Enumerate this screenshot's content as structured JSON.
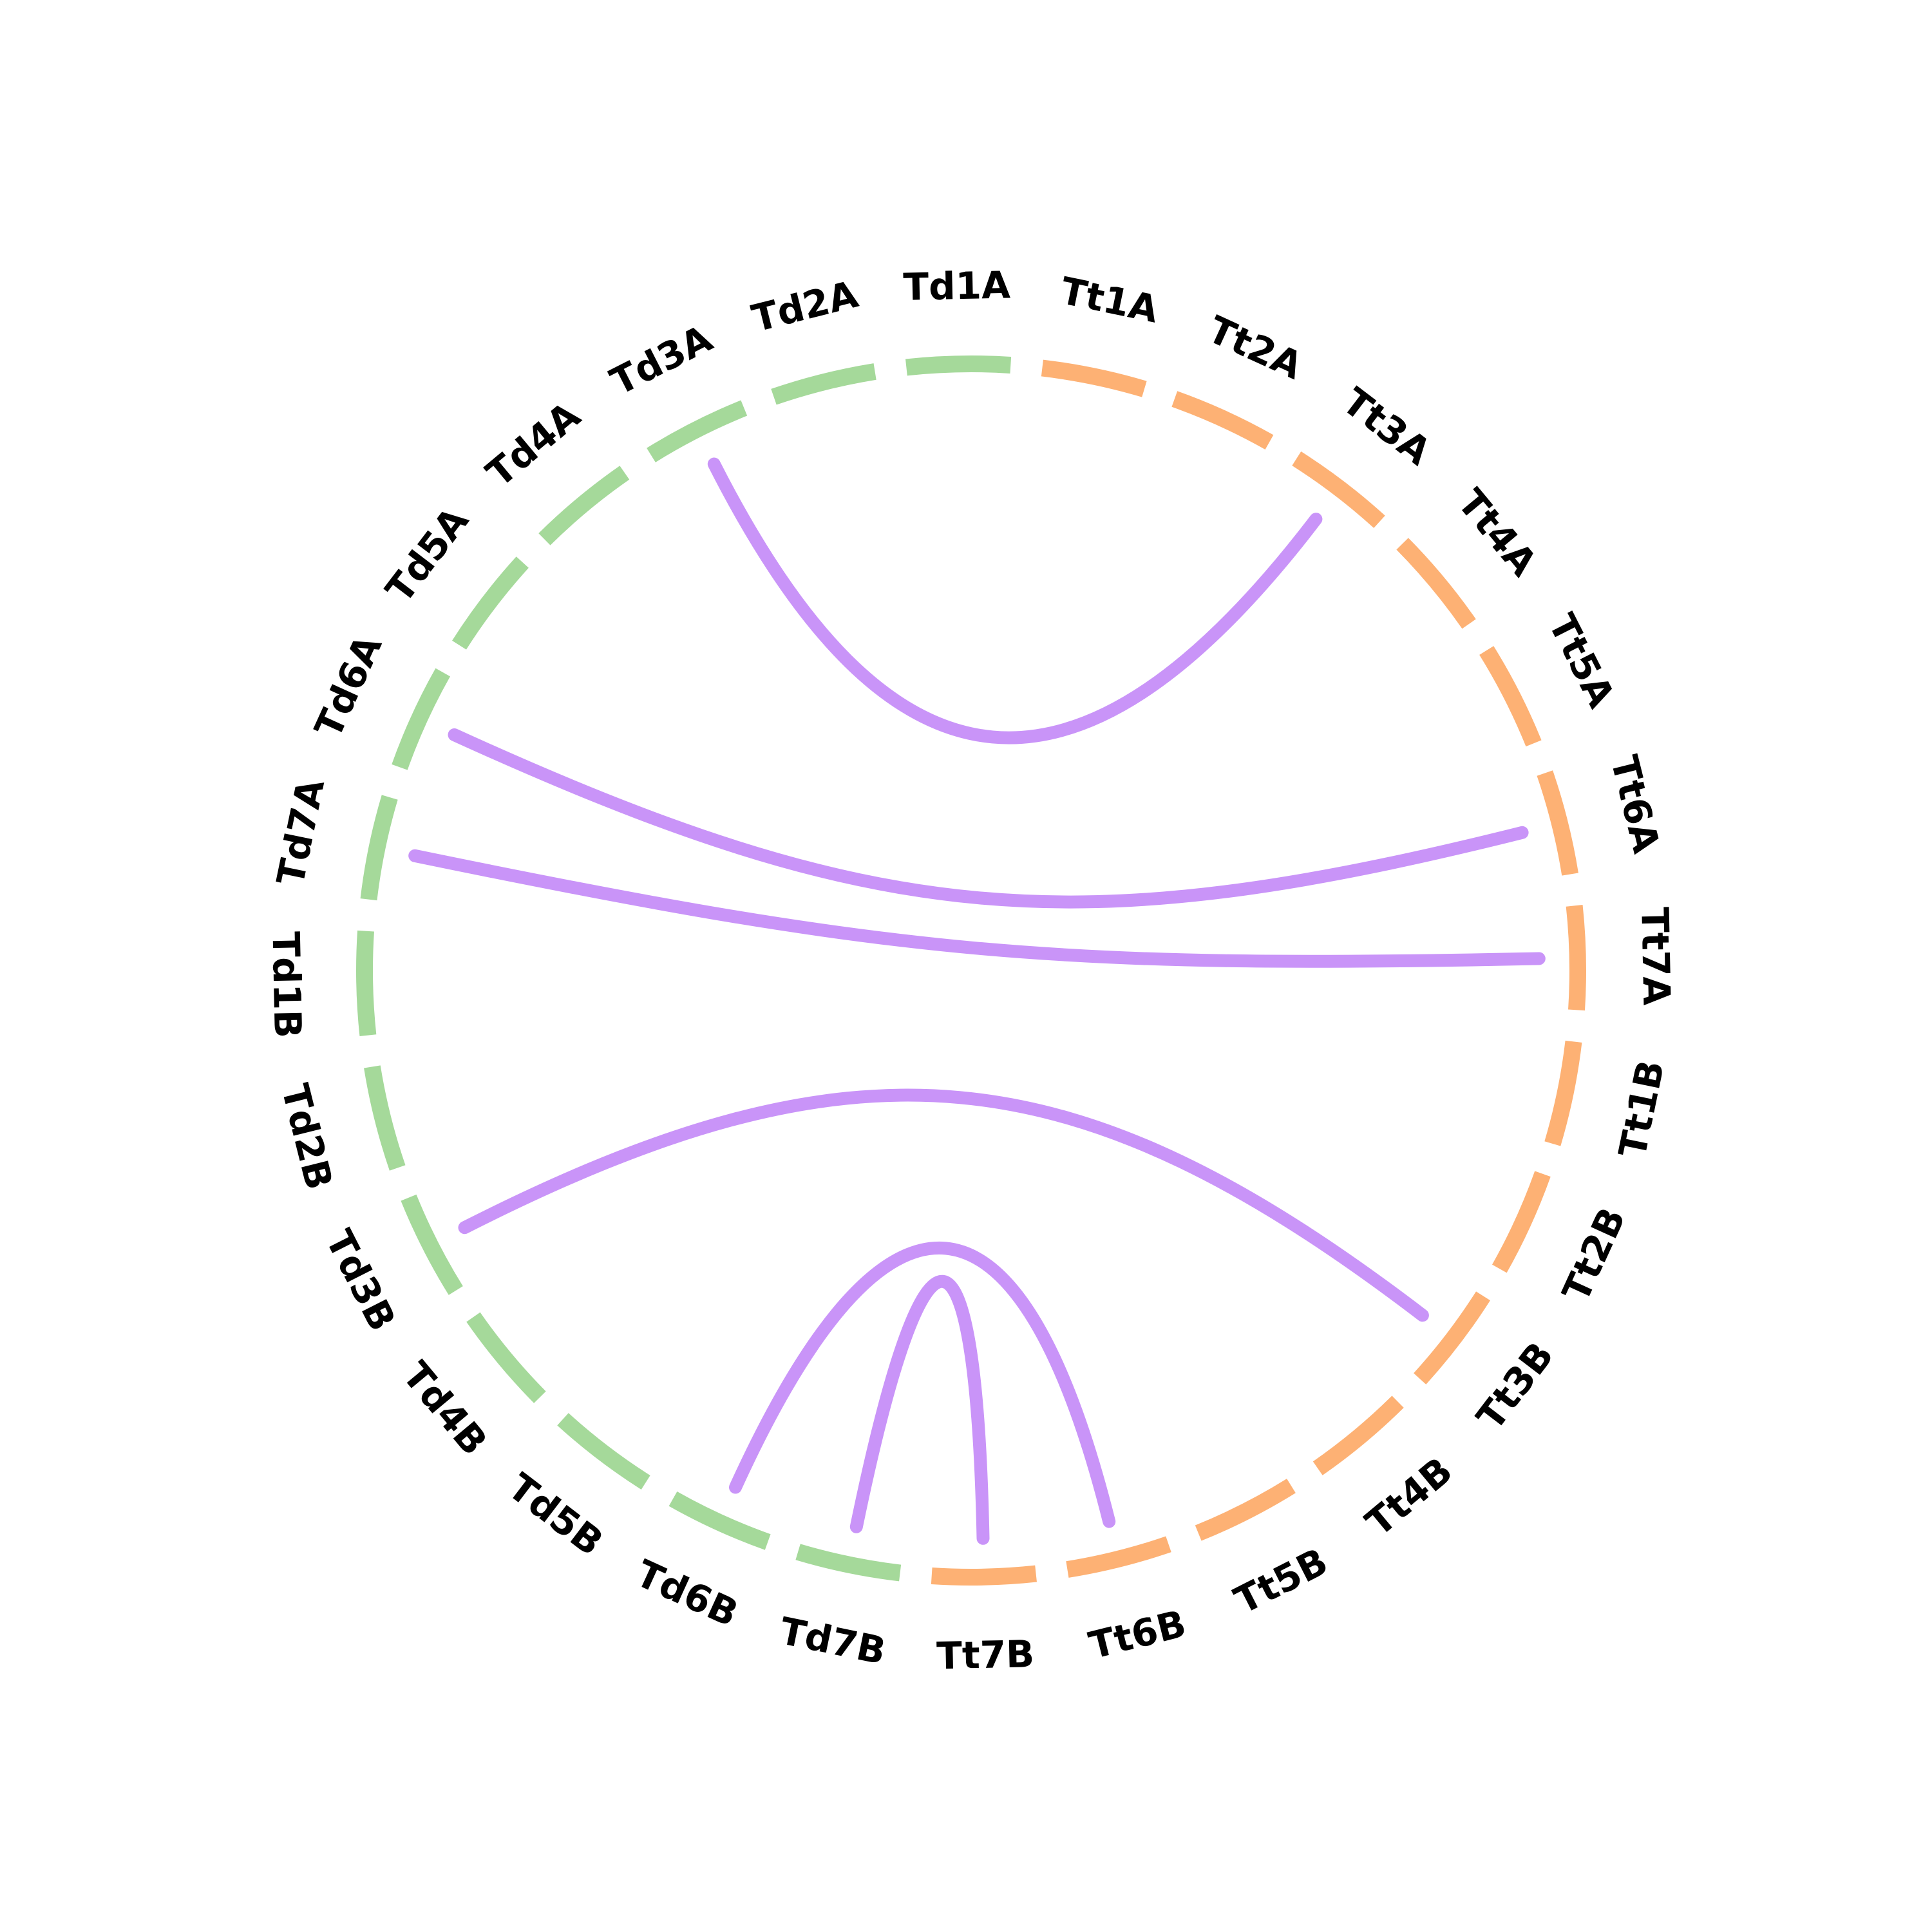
{
  "chart_data": {
    "type": "chord",
    "groups": [
      {
        "name": "Td",
        "color": "#a5d99a"
      },
      {
        "name": "Tt",
        "color": "#fdb174"
      }
    ],
    "segments": [
      {
        "label": "Td1A",
        "group": "Td"
      },
      {
        "label": "Tt1A",
        "group": "Tt"
      },
      {
        "label": "Tt2A",
        "group": "Tt"
      },
      {
        "label": "Tt3A",
        "group": "Tt"
      },
      {
        "label": "Tt4A",
        "group": "Tt"
      },
      {
        "label": "Tt5A",
        "group": "Tt"
      },
      {
        "label": "Tt6A",
        "group": "Tt"
      },
      {
        "label": "Tt7A",
        "group": "Tt"
      },
      {
        "label": "Tt1B",
        "group": "Tt"
      },
      {
        "label": "Tt2B",
        "group": "Tt"
      },
      {
        "label": "Tt3B",
        "group": "Tt"
      },
      {
        "label": "Tt4B",
        "group": "Tt"
      },
      {
        "label": "Tt5B",
        "group": "Tt"
      },
      {
        "label": "Tt6B",
        "group": "Tt"
      },
      {
        "label": "Tt7B",
        "group": "Tt"
      },
      {
        "label": "Td7B",
        "group": "Td"
      },
      {
        "label": "Td6B",
        "group": "Td"
      },
      {
        "label": "Td5B",
        "group": "Td"
      },
      {
        "label": "Td4B",
        "group": "Td"
      },
      {
        "label": "Td3B",
        "group": "Td"
      },
      {
        "label": "Td2B",
        "group": "Td"
      },
      {
        "label": "Td1B",
        "group": "Td"
      },
      {
        "label": "Td7A",
        "group": "Td"
      },
      {
        "label": "Td6A",
        "group": "Td"
      },
      {
        "label": "Td5A",
        "group": "Td"
      },
      {
        "label": "Td4A",
        "group": "Td"
      },
      {
        "label": "Td3A",
        "group": "Td"
      },
      {
        "label": "Td2A",
        "group": "Td"
      }
    ],
    "links": [
      {
        "source": "Td3A",
        "target": "Tt3A"
      },
      {
        "source": "Td6A",
        "target": "Tt6A"
      },
      {
        "source": "Td7A",
        "target": "Tt7A"
      },
      {
        "source": "Td3B",
        "target": "Tt3B"
      },
      {
        "source": "Td6B",
        "target": "Tt6B"
      },
      {
        "source": "Td7B",
        "target": "Tt7B"
      }
    ],
    "link_color": "#c994f8"
  }
}
